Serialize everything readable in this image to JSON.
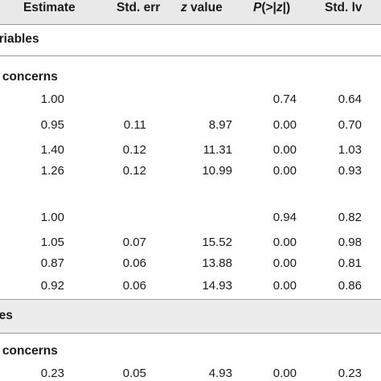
{
  "header": {
    "estimate": "Estimate",
    "std_err": "Std. err",
    "z_value_italic": "z",
    "z_value_rest": " value",
    "p_prefix": "P",
    "p_open": "(>|",
    "p_z": "z",
    "p_close": "|)",
    "std_lv": "Std. lv"
  },
  "sections": {
    "variables_label": "ariables",
    "concerns_label_1": "e concerns",
    "ces_label": "ces",
    "concerns_label_2": "e concerns"
  },
  "rows": [
    {
      "estimate": "1.00",
      "std_err": "",
      "z": "",
      "p": "0.74",
      "std_lv": "0.64"
    },
    {
      "estimate": "0.95",
      "std_err": "0.11",
      "z": "8.97",
      "p": "0.00",
      "std_lv": "0.70"
    },
    {
      "estimate": "1.40",
      "std_err": "0.12",
      "z": "11.31",
      "p": "0.00",
      "std_lv": "1.03"
    },
    {
      "estimate": "1.26",
      "std_err": "0.12",
      "z": "10.99",
      "p": "0.00",
      "std_lv": "0.93"
    },
    {
      "estimate": "1.00",
      "std_err": "",
      "z": "",
      "p": "0.94",
      "std_lv": "0.82"
    },
    {
      "estimate": "1.05",
      "std_err": "0.07",
      "z": "15.52",
      "p": "0.00",
      "std_lv": "0.98"
    },
    {
      "estimate": "0.87",
      "std_err": "0.06",
      "z": "13.88",
      "p": "0.00",
      "std_lv": "0.81"
    },
    {
      "estimate": "0.92",
      "std_err": "0.06",
      "z": "14.93",
      "p": "0.00",
      "std_lv": "0.86"
    },
    {
      "estimate": "0.23",
      "std_err": "0.05",
      "z": "4.93",
      "p": "0.00",
      "std_lv": "0.23"
    }
  ]
}
